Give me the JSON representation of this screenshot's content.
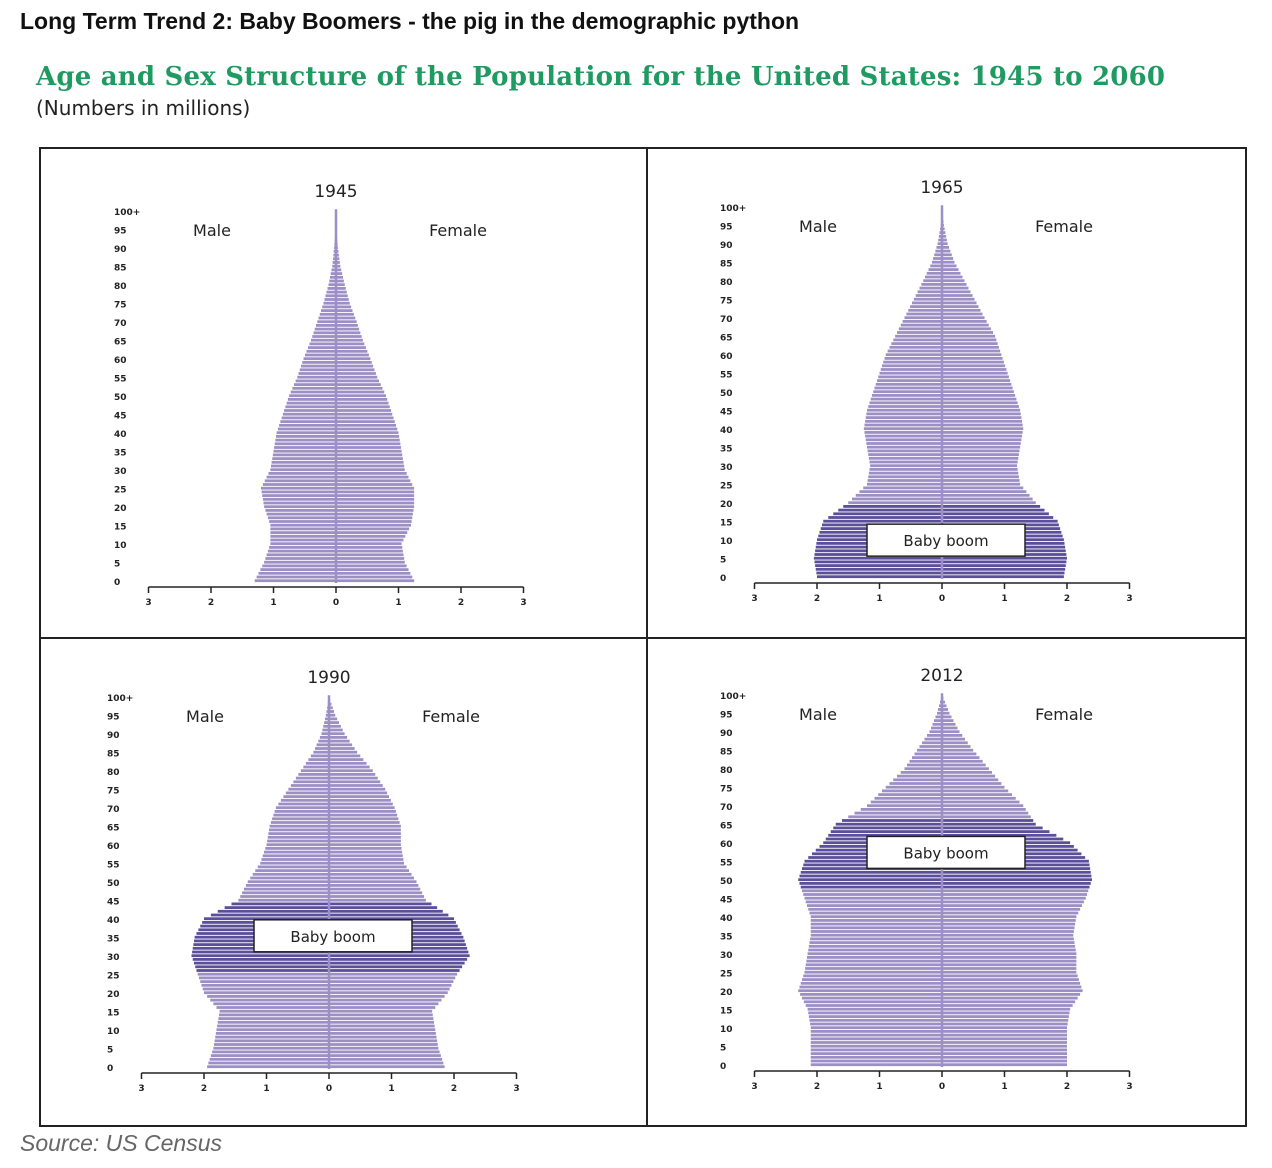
{
  "header": {
    "title": "Long Term Trend 2:  Baby Boomers - the pig in the demographic python",
    "chart_title": "Age and Sex Structure of the Population for the United States: 1945 to 2060",
    "chart_subtitle": "(Numbers in millions)"
  },
  "source": "Source: US Census",
  "colors": {
    "bar": "#9c8fc6",
    "boom": "#5b4e9b",
    "bar_gap": "#ffffff",
    "title_green": "#1f9b62"
  },
  "chart_data": [
    {
      "type": "population-pyramid",
      "title": "1945",
      "left_label": "Male",
      "right_label": "Female",
      "y_ticks": [
        "0",
        "5",
        "10",
        "15",
        "20",
        "25",
        "30",
        "35",
        "40",
        "45",
        "50",
        "55",
        "60",
        "65",
        "70",
        "75",
        "80",
        "85",
        "90",
        "95",
        "100+"
      ],
      "x_ticks": [
        "3",
        "2",
        "1",
        "0",
        "1",
        "2",
        "3"
      ],
      "xlim": [
        0,
        3
      ],
      "ages": [
        0,
        5,
        10,
        15,
        20,
        25,
        30,
        35,
        40,
        45,
        50,
        55,
        60,
        65,
        70,
        75,
        80,
        85,
        90,
        95,
        100
      ],
      "male": [
        1.3,
        1.15,
        1.05,
        1.05,
        1.15,
        1.2,
        1.05,
        1.0,
        0.95,
        0.85,
        0.75,
        0.62,
        0.52,
        0.4,
        0.3,
        0.2,
        0.12,
        0.06,
        0.03,
        0.01,
        0.0
      ],
      "female": [
        1.25,
        1.1,
        1.05,
        1.2,
        1.25,
        1.25,
        1.1,
        1.05,
        1.0,
        0.9,
        0.8,
        0.66,
        0.55,
        0.43,
        0.33,
        0.22,
        0.14,
        0.07,
        0.03,
        0.01,
        0.0
      ],
      "boom": null,
      "annotation": ""
    },
    {
      "type": "population-pyramid",
      "title": "1965",
      "left_label": "Male",
      "right_label": "Female",
      "y_ticks": [
        "0",
        "5",
        "10",
        "15",
        "20",
        "25",
        "30",
        "35",
        "40",
        "45",
        "50",
        "55",
        "60",
        "65",
        "70",
        "75",
        "80",
        "85",
        "90",
        "95",
        "100+"
      ],
      "x_ticks": [
        "3",
        "2",
        "1",
        "0",
        "1",
        "2",
        "3"
      ],
      "xlim": [
        0,
        3
      ],
      "ages": [
        0,
        5,
        10,
        15,
        20,
        25,
        30,
        35,
        40,
        45,
        50,
        55,
        60,
        65,
        70,
        75,
        80,
        85,
        90,
        95,
        100
      ],
      "male": [
        2.0,
        2.05,
        2.0,
        1.9,
        1.5,
        1.2,
        1.15,
        1.2,
        1.25,
        1.2,
        1.1,
        1.0,
        0.9,
        0.75,
        0.6,
        0.45,
        0.3,
        0.16,
        0.07,
        0.02,
        0.0
      ],
      "female": [
        1.95,
        2.0,
        1.95,
        1.85,
        1.5,
        1.25,
        1.2,
        1.25,
        1.3,
        1.25,
        1.15,
        1.05,
        0.95,
        0.85,
        0.68,
        0.52,
        0.36,
        0.2,
        0.09,
        0.03,
        0.0
      ],
      "boom": [
        0,
        19
      ],
      "annotation": "Baby boom"
    },
    {
      "type": "population-pyramid",
      "title": "1990",
      "left_label": "Male",
      "right_label": "Female",
      "y_ticks": [
        "0",
        "5",
        "10",
        "15",
        "20",
        "25",
        "30",
        "35",
        "40",
        "45",
        "50",
        "55",
        "60",
        "65",
        "70",
        "75",
        "80",
        "85",
        "90",
        "95",
        "100+"
      ],
      "x_ticks": [
        "3",
        "2",
        "1",
        "0",
        "1",
        "2",
        "3"
      ],
      "xlim": [
        0,
        3
      ],
      "ages": [
        0,
        5,
        10,
        15,
        20,
        25,
        30,
        35,
        40,
        45,
        50,
        55,
        60,
        65,
        70,
        75,
        80,
        85,
        90,
        95,
        100
      ],
      "male": [
        1.95,
        1.85,
        1.8,
        1.75,
        2.0,
        2.1,
        2.2,
        2.15,
        2.0,
        1.45,
        1.3,
        1.1,
        1.0,
        0.95,
        0.85,
        0.65,
        0.45,
        0.25,
        0.12,
        0.05,
        0.0
      ],
      "female": [
        1.85,
        1.75,
        1.7,
        1.65,
        1.9,
        2.05,
        2.25,
        2.15,
        2.0,
        1.55,
        1.4,
        1.2,
        1.15,
        1.15,
        1.05,
        0.9,
        0.7,
        0.45,
        0.25,
        0.1,
        0.0
      ],
      "boom": [
        26,
        44
      ],
      "annotation": "Baby boom"
    },
    {
      "type": "population-pyramid",
      "title": "2012",
      "left_label": "Male",
      "right_label": "Female",
      "y_ticks": [
        "0",
        "5",
        "10",
        "15",
        "20",
        "25",
        "30",
        "35",
        "40",
        "45",
        "50",
        "55",
        "60",
        "65",
        "70",
        "75",
        "80",
        "85",
        "90",
        "95",
        "100+"
      ],
      "x_ticks": [
        "3",
        "2",
        "1",
        "0",
        "1",
        "2",
        "3"
      ],
      "xlim": [
        0,
        3
      ],
      "ages": [
        0,
        5,
        10,
        15,
        20,
        25,
        30,
        35,
        40,
        45,
        50,
        55,
        60,
        65,
        70,
        75,
        80,
        85,
        90,
        95,
        100
      ],
      "male": [
        2.1,
        2.1,
        2.1,
        2.15,
        2.3,
        2.2,
        2.15,
        2.1,
        2.1,
        2.2,
        2.3,
        2.2,
        1.9,
        1.7,
        1.2,
        0.9,
        0.6,
        0.4,
        0.2,
        0.08,
        0.0
      ],
      "female": [
        2.0,
        2.0,
        2.0,
        2.05,
        2.25,
        2.15,
        2.15,
        2.1,
        2.15,
        2.3,
        2.4,
        2.35,
        2.05,
        1.5,
        1.3,
        1.0,
        0.75,
        0.5,
        0.28,
        0.12,
        0.0
      ],
      "boom": [
        48,
        66
      ],
      "annotation": "Baby boom"
    }
  ]
}
